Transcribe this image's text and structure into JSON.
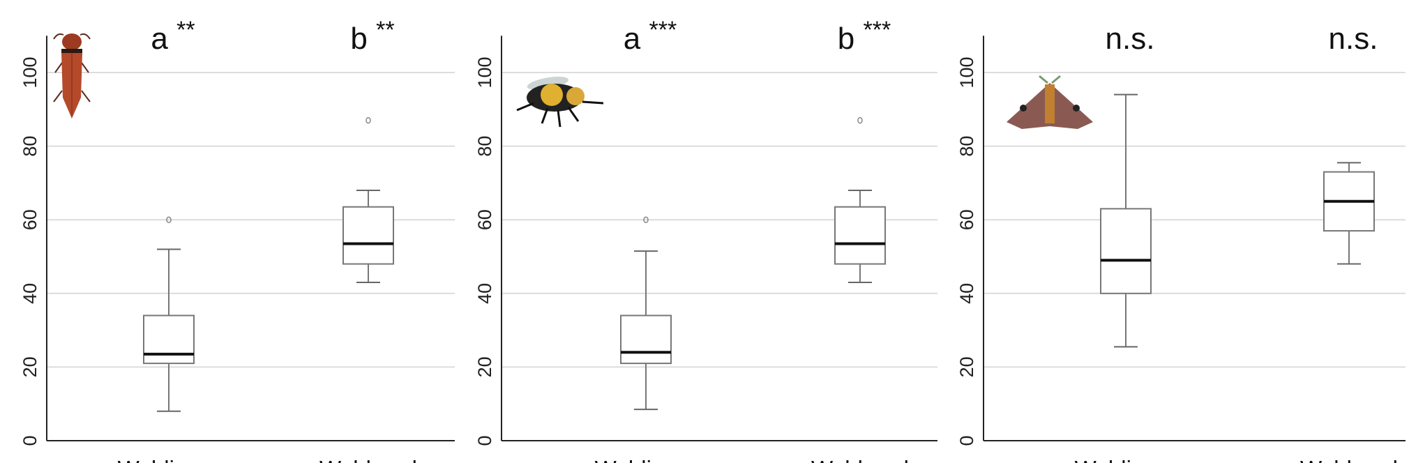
{
  "chart_data": [
    {
      "type": "box",
      "insect_icon": "click-beetle-icon",
      "categories": [
        "Waldinnen",
        "Waldrand"
      ],
      "annotations": [
        "a **",
        "b **"
      ],
      "ylim": [
        0,
        110
      ],
      "yticks": [
        "0",
        "20",
        "40",
        "60",
        "80",
        "100"
      ],
      "grid": true,
      "boxes": [
        {
          "min": 8,
          "q1": 21,
          "median": 23.5,
          "q3": 34,
          "max": 52,
          "outliers": [
            60
          ]
        },
        {
          "min": 43,
          "q1": 48,
          "median": 53.5,
          "q3": 63.5,
          "max": 68,
          "outliers": [
            87
          ]
        }
      ]
    },
    {
      "type": "box",
      "insect_icon": "bumblebee-icon",
      "categories": [
        "Waldinnen",
        "Waldrand"
      ],
      "annotations": [
        "a ***",
        "b ***"
      ],
      "ylim": [
        0,
        110
      ],
      "yticks": [
        "0",
        "20",
        "40",
        "60",
        "80",
        "100"
      ],
      "grid": true,
      "boxes": [
        {
          "min": 8.5,
          "q1": 21,
          "median": 24,
          "q3": 34,
          "max": 51.5,
          "outliers": [
            60
          ]
        },
        {
          "min": 43,
          "q1": 48,
          "median": 53.5,
          "q3": 63.5,
          "max": 68,
          "outliers": [
            87
          ]
        }
      ]
    },
    {
      "type": "box",
      "insect_icon": "moth-icon",
      "categories": [
        "Waldinnen",
        "Waldrand"
      ],
      "annotations": [
        "n.s.",
        "n.s."
      ],
      "ylim": [
        0,
        110
      ],
      "yticks": [
        "0",
        "20",
        "40",
        "60",
        "80",
        "100"
      ],
      "grid": true,
      "boxes": [
        {
          "min": 25.5,
          "q1": 40,
          "median": 49,
          "q3": 63,
          "max": 94,
          "outliers": []
        },
        {
          "min": 48,
          "q1": 57,
          "median": 65,
          "q3": 73,
          "max": 75.5,
          "outliers": []
        }
      ]
    }
  ]
}
